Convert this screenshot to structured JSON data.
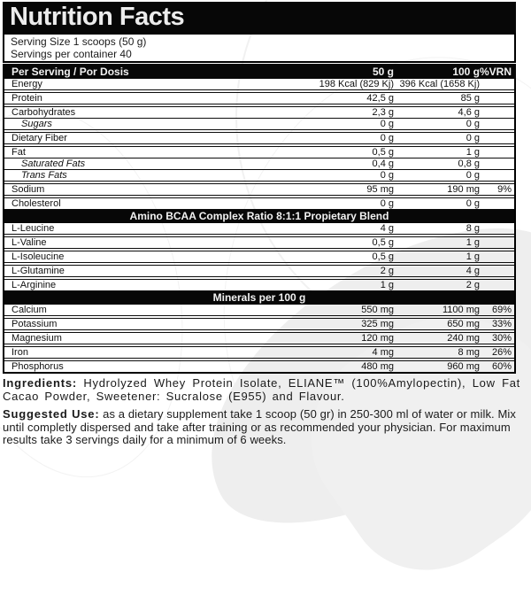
{
  "label": {
    "title": "Nutrition Facts",
    "serving_line1": "Serving Size 1 scoops (50 g)",
    "serving_line2": "Servings per container 40",
    "header": {
      "name": "Per Serving / Por Dosis",
      "col_50": "50 g",
      "col_100": "100 g",
      "col_vrn": "%VRN"
    },
    "rows": [
      {
        "label": "Energy",
        "per_50": "198 Kcal (829 Kj)",
        "per_100": "396 Kcal (1658 Kj)",
        "vrn": "",
        "sub": false,
        "divider": "thick"
      },
      {
        "label": "Protein",
        "per_50": "42,5 g",
        "per_100": "85 g",
        "vrn": "",
        "sub": false,
        "divider": "thick"
      },
      {
        "label": "Carbohydrates",
        "per_50": "2,3 g",
        "per_100": "4,6 g",
        "vrn": "",
        "sub": false,
        "divider": "thin"
      },
      {
        "label": "Sugars",
        "per_50": "0 g",
        "per_100": "0 g",
        "vrn": "",
        "sub": true,
        "divider": "thick"
      },
      {
        "label": "Dietary Fiber",
        "per_50": "0 g",
        "per_100": "0 g",
        "vrn": "",
        "sub": false,
        "divider": "thick"
      },
      {
        "label": "Fat",
        "per_50": "0,5 g",
        "per_100": "1 g",
        "vrn": "",
        "sub": false,
        "divider": "thin"
      },
      {
        "label": "Saturated Fats",
        "per_50": "0,4 g",
        "per_100": "0,8 g",
        "vrn": "",
        "sub": true,
        "divider": "thin"
      },
      {
        "label": "Trans Fats",
        "per_50": "0 g",
        "per_100": "0 g",
        "vrn": "",
        "sub": true,
        "divider": "thick"
      },
      {
        "label": "Sodium",
        "per_50": "95 mg",
        "per_100": "190 mg",
        "vrn": "9%",
        "sub": false,
        "divider": "thick"
      },
      {
        "label": "Cholesterol",
        "per_50": "0 g",
        "per_100": "0 g",
        "vrn": "",
        "sub": false,
        "divider": "thin"
      }
    ],
    "section_amino": "Amino BCAA Complex Ratio 8:1:1 Propietary Blend",
    "amino_rows": [
      {
        "label": "L-Leucine",
        "per_50": "4 g",
        "per_100": "8 g",
        "vrn": "",
        "sub": false,
        "divider": "thick"
      },
      {
        "label": "L-Valine",
        "per_50": "0,5 g",
        "per_100": "1 g",
        "vrn": "",
        "sub": false,
        "divider": "thick"
      },
      {
        "label": "L-Isoleucine",
        "per_50": "0,5 g",
        "per_100": "1 g",
        "vrn": "",
        "sub": false,
        "divider": "thick"
      },
      {
        "label": "L-Glutamine",
        "per_50": "2 g",
        "per_100": "4 g",
        "vrn": "",
        "sub": false,
        "divider": "thick"
      },
      {
        "label": "L-Arginine",
        "per_50": "1 g",
        "per_100": "2 g",
        "vrn": "",
        "sub": false,
        "divider": "thin"
      }
    ],
    "section_minerals": "Minerals per 100 g",
    "mineral_rows": [
      {
        "label": "Calcium",
        "per_50": "550 mg",
        "per_100": "1100 mg",
        "vrn": "69%",
        "sub": false,
        "divider": "thick"
      },
      {
        "label": "Potassium",
        "per_50": "325 mg",
        "per_100": "650 mg",
        "vrn": "33%",
        "sub": false,
        "divider": "thick"
      },
      {
        "label": "Magnesium",
        "per_50": "120 mg",
        "per_100": "240 mg",
        "vrn": "30%",
        "sub": false,
        "divider": "thick"
      },
      {
        "label": "Iron",
        "per_50": "4 mg",
        "per_100": "8 mg",
        "vrn": "26%",
        "sub": false,
        "divider": "thick"
      },
      {
        "label": "Phosphorus",
        "per_50": "480 mg",
        "per_100": "960 mg",
        "vrn": "60%",
        "sub": false,
        "divider": "none"
      }
    ],
    "ingredients_label": "Ingredients:",
    "ingredients_text": " Hydrolyzed Whey Protein Isolate, ELIANE™ (100%Amylopectin), Low Fat Cacao Powder, Sweetener: Sucralose (E955) and Flavour.",
    "suggested_label": "Suggested Use:",
    "suggested_text": " as a dietary supplement take 1 scoop (50 gr) in 250-300 ml of water or milk. Mix until completly dispersed and take after training or as recommended your physician. For maximum results take 3 servings daily for a minimum of 6 weeks."
  },
  "colors": {
    "bar_background": "#070707",
    "bar_text": "#f2f2f2",
    "body_text": "#141414",
    "rule": "#0c0c0c",
    "watermark": "#eeeeee"
  }
}
